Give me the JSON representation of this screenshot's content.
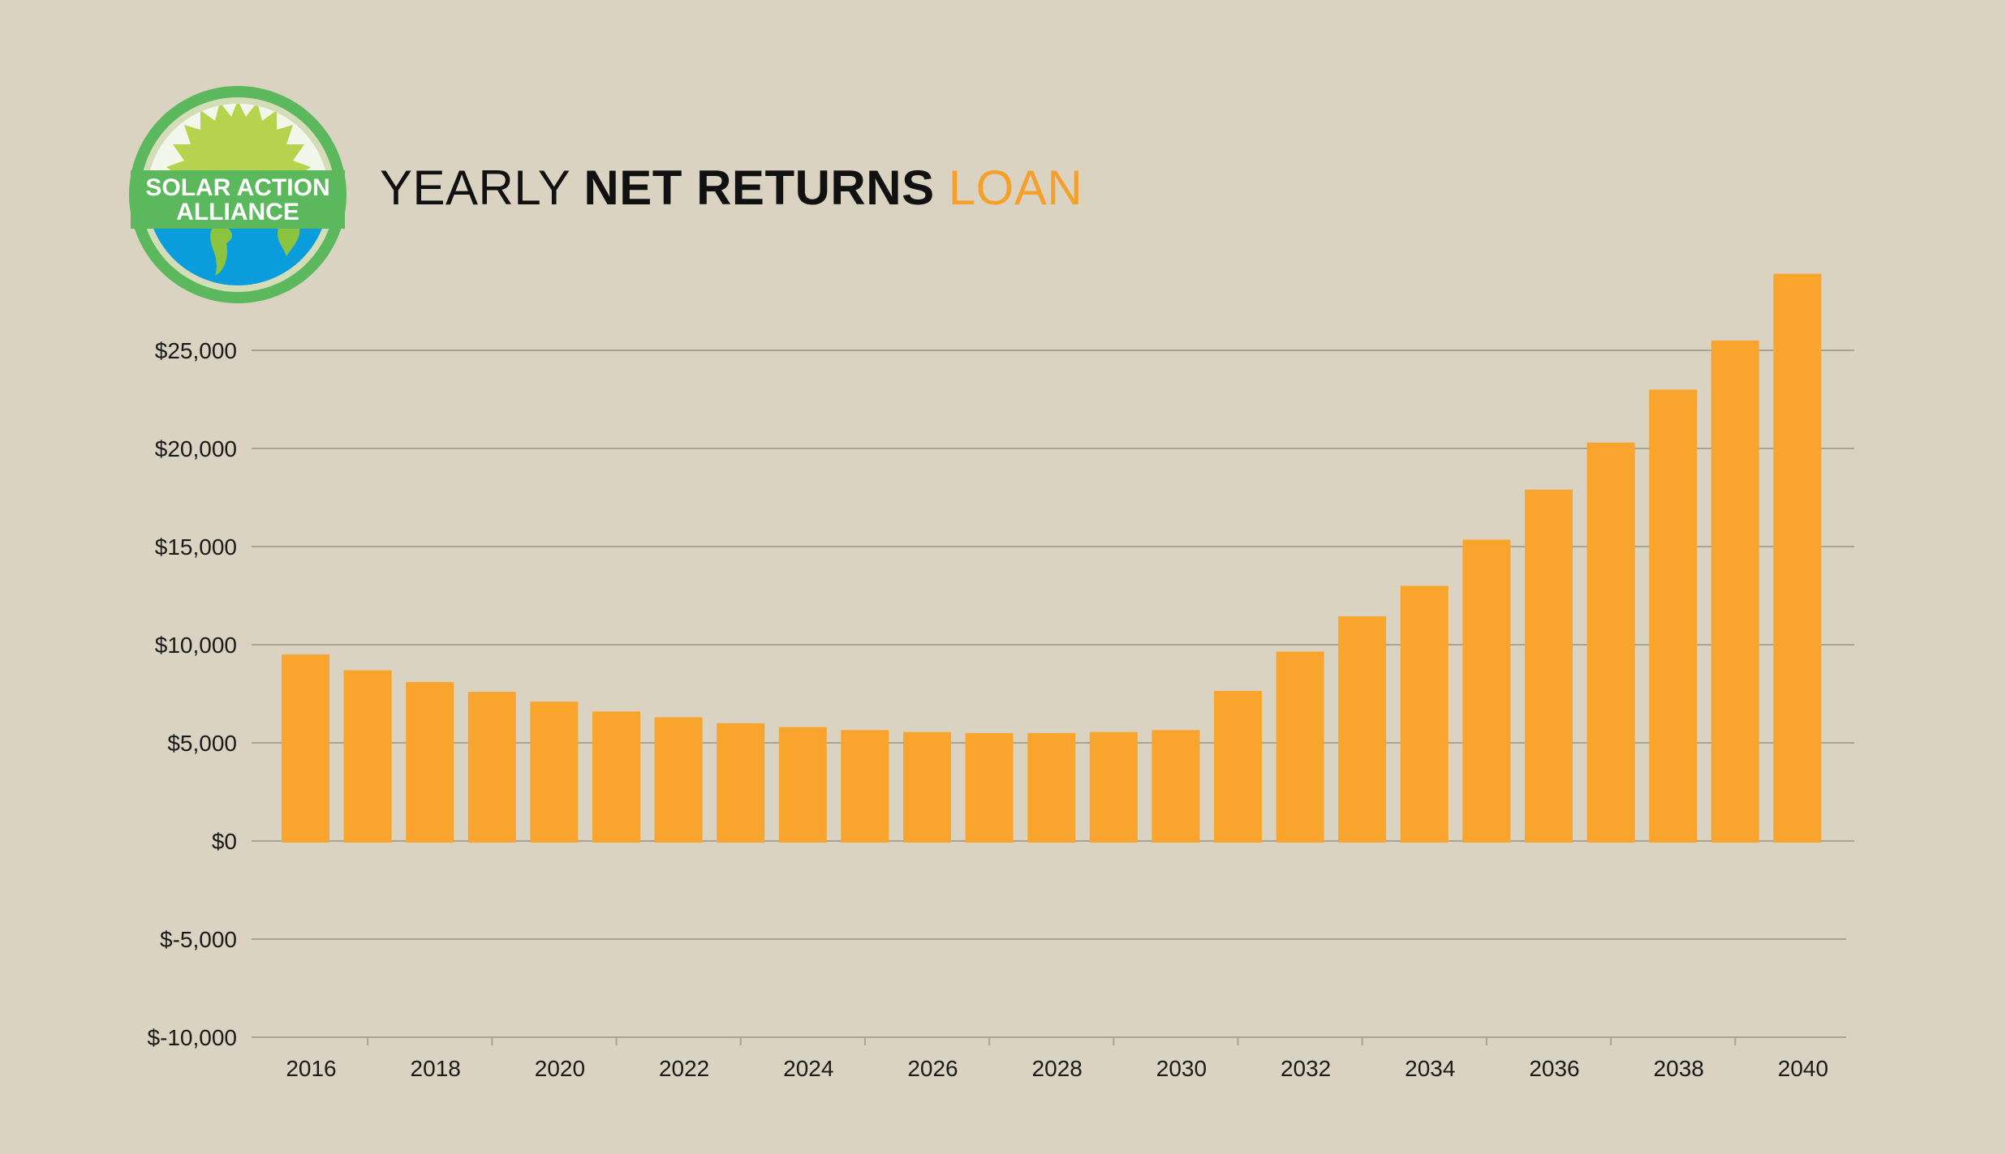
{
  "logo": {
    "line1": "SOLAR ACTION",
    "line2": "ALLIANCE",
    "colors": {
      "ring": "#5cb85c",
      "sun": "#b5d34d",
      "earth": "#0b9ddb",
      "land": "#8cc43f",
      "band": "#5cb85c"
    }
  },
  "title": {
    "part1": "YEARLY ",
    "part2": "NET RETURNS ",
    "part3": "LOAN"
  },
  "colors": {
    "background": "#dad3c1",
    "bar": "#f9a42d",
    "grid": "#a9a393",
    "accent": "#f5a02b"
  },
  "chart_data": {
    "type": "bar",
    "ylim": [
      -10000,
      27500
    ],
    "yticks": [
      25000,
      20000,
      15000,
      10000,
      5000,
      0,
      -5000,
      -10000
    ],
    "ytick_labels": [
      "$25,000",
      "$20,000",
      "$15,000",
      "$10,000",
      "$5,000",
      "$0",
      "$-5,000",
      "$-10,000"
    ],
    "xtick_labels": [
      "2016",
      "2018",
      "2020",
      "2022",
      "2024",
      "2026",
      "2028",
      "2030",
      "2032",
      "2034",
      "2036",
      "2038",
      "2040"
    ],
    "categories": [
      "2016",
      "2017",
      "2018",
      "2019",
      "2020",
      "2021",
      "2022",
      "2023",
      "2024",
      "2025",
      "2026",
      "2027",
      "2028",
      "2029",
      "2030",
      "2031",
      "2032",
      "2033",
      "2034",
      "2035",
      "2036",
      "2037",
      "2038",
      "2039",
      "2040"
    ],
    "values": [
      9500,
      8700,
      8100,
      7600,
      7100,
      6600,
      6300,
      6000,
      5800,
      5650,
      5550,
      5500,
      5500,
      5550,
      5650,
      7650,
      9650,
      11450,
      13000,
      15350,
      17900,
      20300,
      23000,
      25500,
      28900
    ],
    "grid": true
  }
}
